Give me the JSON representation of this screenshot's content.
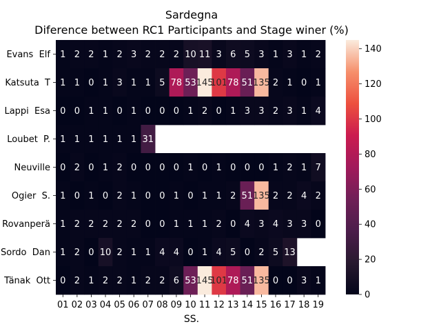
{
  "chart_data": {
    "type": "heatmap",
    "title": "Sardegna",
    "subtitle": "Diference between RC1 Participants and Stage winer (%)",
    "xlabel": "SS.",
    "ylabel": "",
    "x_categories": [
      "01",
      "02",
      "03",
      "04",
      "05",
      "06",
      "07",
      "08",
      "09",
      "10",
      "11",
      "12",
      "13",
      "14",
      "15",
      "16",
      "17",
      "18",
      "19"
    ],
    "y_categories": [
      "Evans  Elf",
      "Katsuta  T",
      "Lappi  Esa",
      "Loubet  P.",
      "Neuville",
      "Ogier  S.",
      "Rovanperä",
      "Sordo  Dan",
      "Tänak  Ott"
    ],
    "values": [
      [
        1,
        2,
        2,
        1,
        2,
        3,
        2,
        2,
        2,
        10,
        11,
        3,
        6,
        5,
        3,
        1,
        3,
        1,
        2
      ],
      [
        1,
        1,
        0,
        1,
        3,
        1,
        1,
        5,
        78,
        53,
        145,
        101,
        78,
        51,
        135,
        2,
        1,
        0,
        1
      ],
      [
        0,
        0,
        1,
        1,
        0,
        1,
        0,
        0,
        0,
        1,
        2,
        0,
        1,
        3,
        3,
        2,
        3,
        1,
        4
      ],
      [
        1,
        1,
        1,
        1,
        1,
        1,
        31,
        null,
        null,
        null,
        null,
        null,
        null,
        null,
        null,
        null,
        null,
        null,
        null
      ],
      [
        0,
        2,
        0,
        1,
        2,
        0,
        0,
        0,
        0,
        1,
        0,
        1,
        0,
        0,
        0,
        1,
        2,
        1,
        7
      ],
      [
        1,
        0,
        1,
        0,
        2,
        1,
        0,
        0,
        1,
        0,
        1,
        1,
        2,
        51,
        135,
        2,
        2,
        4,
        2
      ],
      [
        1,
        2,
        2,
        2,
        2,
        2,
        0,
        0,
        1,
        1,
        1,
        2,
        0,
        4,
        3,
        4,
        3,
        3,
        0
      ],
      [
        1,
        2,
        0,
        10,
        2,
        1,
        1,
        4,
        4,
        0,
        1,
        4,
        5,
        0,
        2,
        5,
        13,
        null,
        null
      ],
      [
        0,
        2,
        1,
        2,
        2,
        1,
        2,
        2,
        6,
        53,
        145,
        101,
        78,
        51,
        135,
        0,
        0,
        3,
        1
      ]
    ],
    "colorbar": {
      "range": [
        0,
        145
      ],
      "ticks": [
        0,
        20,
        40,
        60,
        80,
        100,
        120,
        140
      ],
      "colormap": "rocket"
    },
    "grid": false,
    "legend": "colorbar-right"
  }
}
